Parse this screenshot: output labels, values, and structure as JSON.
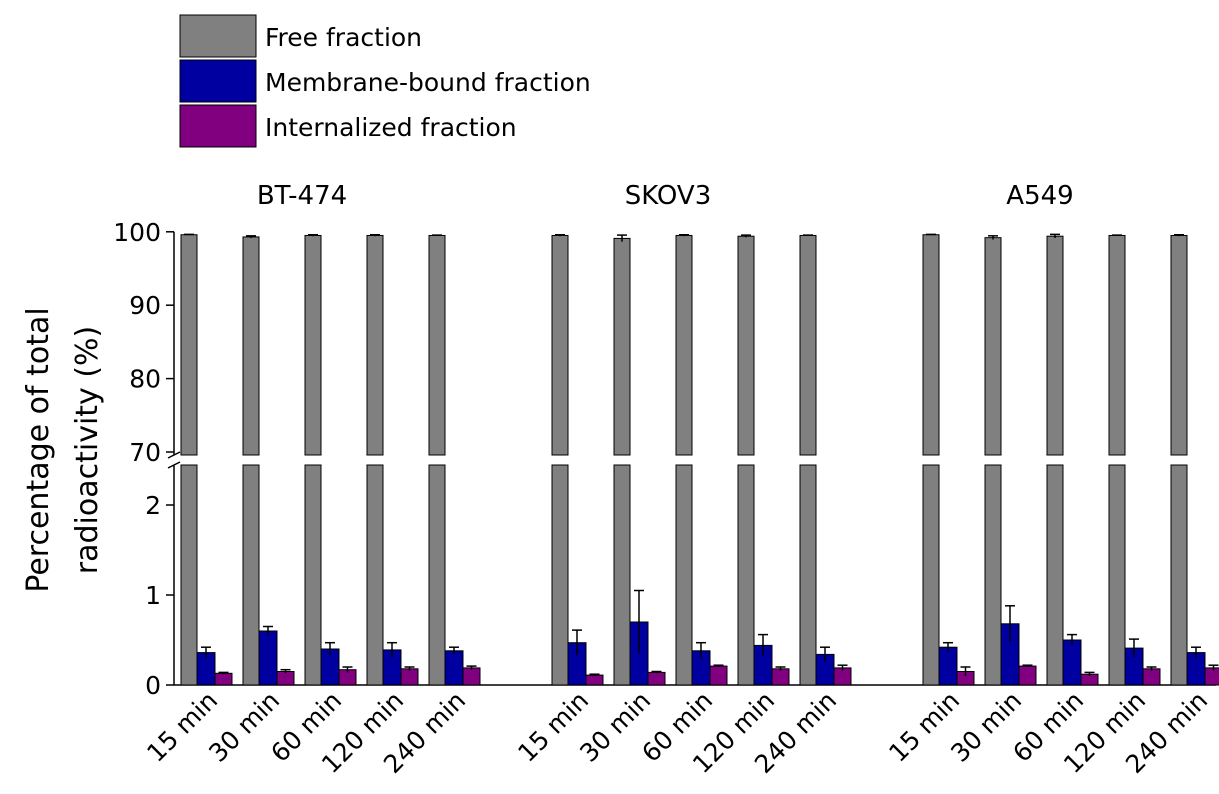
{
  "chart_data": {
    "type": "bar",
    "ylabel_line1": "Percentage of total",
    "ylabel_line2": "radioactivity (%)",
    "y_axis_break": [
      2.5,
      70
    ],
    "ylim_lower": [
      0,
      2.5
    ],
    "ylim_upper": [
      70,
      100
    ],
    "yticks_lower": [
      "0",
      "1",
      "2"
    ],
    "yticks_upper": [
      "70",
      "80",
      "90",
      "100"
    ],
    "legend_position": "top-left",
    "legend": [
      {
        "name": "Free fraction",
        "color": "#808080"
      },
      {
        "name": "Membrane-bound fraction",
        "color": "#0000a0"
      },
      {
        "name": "Internalized fraction",
        "color": "#800080"
      }
    ],
    "categories": [
      "15 min",
      "30 min",
      "60 min",
      "120 min",
      "240 min"
    ],
    "groups": [
      {
        "name": "BT-474",
        "series": [
          {
            "name": "Free fraction",
            "values": [
              99.6,
              99.3,
              99.5,
              99.5,
              99.5
            ],
            "errors": [
              0.05,
              0.15,
              0.1,
              0.1,
              0.05
            ]
          },
          {
            "name": "Membrane-bound fraction",
            "values": [
              0.36,
              0.6,
              0.4,
              0.39,
              0.38
            ],
            "errors": [
              0.06,
              0.05,
              0.07,
              0.08,
              0.04
            ]
          },
          {
            "name": "Internalized fraction",
            "values": [
              0.13,
              0.15,
              0.17,
              0.18,
              0.19
            ],
            "errors": [
              0.01,
              0.02,
              0.03,
              0.02,
              0.02
            ]
          }
        ]
      },
      {
        "name": "SKOV3",
        "series": [
          {
            "name": "Free fraction",
            "values": [
              99.5,
              99.1,
              99.5,
              99.4,
              99.5
            ],
            "errors": [
              0.1,
              0.45,
              0.1,
              0.15,
              0.05
            ]
          },
          {
            "name": "Membrane-bound fraction",
            "values": [
              0.47,
              0.7,
              0.38,
              0.44,
              0.34
            ],
            "errors": [
              0.14,
              0.35,
              0.09,
              0.12,
              0.08
            ]
          },
          {
            "name": "Internalized fraction",
            "values": [
              0.11,
              0.14,
              0.21,
              0.18,
              0.19
            ],
            "errors": [
              0.01,
              0.01,
              0.01,
              0.02,
              0.03
            ]
          }
        ]
      },
      {
        "name": "A549",
        "series": [
          {
            "name": "Free fraction",
            "values": [
              99.6,
              99.2,
              99.4,
              99.5,
              99.5
            ],
            "errors": [
              0.05,
              0.25,
              0.25,
              0.05,
              0.1
            ]
          },
          {
            "name": "Membrane-bound fraction",
            "values": [
              0.42,
              0.68,
              0.5,
              0.41,
              0.36
            ],
            "errors": [
              0.05,
              0.2,
              0.06,
              0.1,
              0.06
            ]
          },
          {
            "name": "Internalized fraction",
            "values": [
              0.15,
              0.21,
              0.12,
              0.18,
              0.19
            ],
            "errors": [
              0.05,
              0.01,
              0.02,
              0.02,
              0.03
            ]
          }
        ]
      }
    ]
  }
}
